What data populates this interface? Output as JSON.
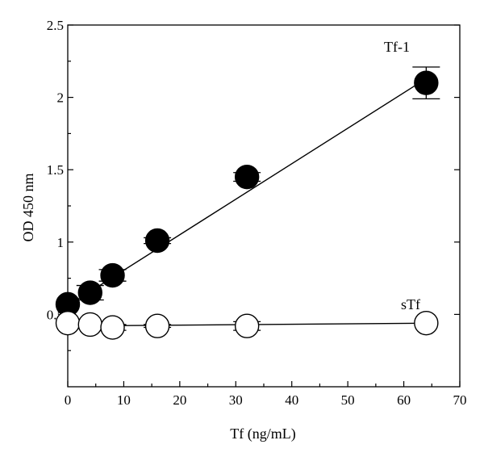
{
  "chart_data": {
    "type": "scatter",
    "xlabel": "Tf (ng/mL)",
    "ylabel": "OD 450 nm",
    "xlim": [
      0,
      70
    ],
    "ylim": [
      0,
      2.5
    ],
    "x_ticks": [
      0,
      10,
      20,
      30,
      40,
      50,
      60,
      70
    ],
    "x_tick_labels": [
      "0",
      "10",
      "20",
      "30",
      "40",
      "50",
      "60",
      "70"
    ],
    "y_ticks": [
      0.5,
      1,
      1.5,
      2,
      2.5
    ],
    "y_tick_labels": [
      "0.5",
      "1",
      "1.5",
      "2",
      "2.5"
    ],
    "grid": false,
    "legend": "none",
    "series": [
      {
        "name": "Tf-1",
        "marker": "filled-circle",
        "color": "#000000",
        "x": [
          0,
          4,
          8,
          16,
          32,
          64
        ],
        "y": [
          0.57,
          0.65,
          0.77,
          1.01,
          1.45,
          2.1
        ],
        "err": [
          0,
          0.05,
          0.04,
          0.02,
          0.03,
          0.11
        ],
        "fit_line": [
          [
            0,
            0.56
          ],
          [
            64,
            2.13
          ]
        ]
      },
      {
        "name": "sTf",
        "marker": "open-circle",
        "color": "#000000",
        "x": [
          0,
          4,
          8,
          16,
          32,
          64
        ],
        "y": [
          0.44,
          0.43,
          0.41,
          0.42,
          0.42,
          0.44
        ],
        "err": [
          0,
          0.02,
          0.02,
          0.01,
          0.03,
          0
        ],
        "fit_line": [
          [
            0,
            0.42
          ],
          [
            66,
            0.44
          ]
        ]
      }
    ]
  }
}
